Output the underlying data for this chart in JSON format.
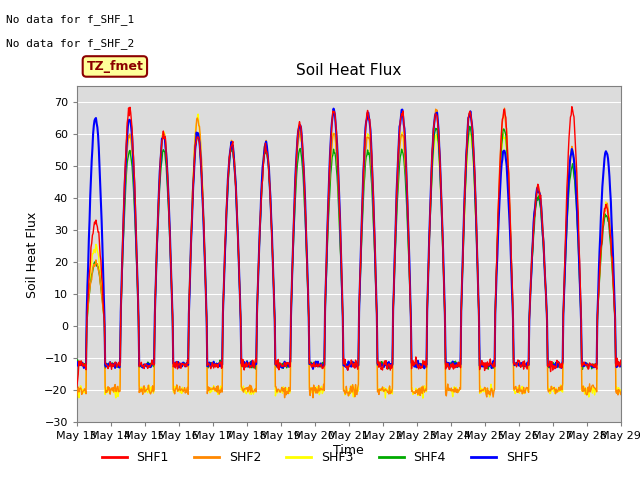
{
  "title": "Soil Heat Flux",
  "ylabel": "Soil Heat Flux",
  "xlabel": "Time",
  "ylim": [
    -30,
    75
  ],
  "yticks": [
    -30,
    -20,
    -10,
    0,
    10,
    20,
    30,
    40,
    50,
    60,
    70
  ],
  "bg_color": "#dcdcdc",
  "fig_bg_color": "#ffffff",
  "text_annotations": [
    "No data for f_SHF_1",
    "No data for f_SHF_2"
  ],
  "legend_label": "TZ_fmet",
  "series_colors": {
    "SHF1": "#ff0000",
    "SHF2": "#ff8800",
    "SHF3": "#ffff00",
    "SHF4": "#00aa00",
    "SHF5": "#0000ff"
  },
  "n_days": 16,
  "start_day": 13,
  "pts_per_day": 48,
  "day_peaks_shf1": [
    33,
    68,
    60,
    60,
    57,
    56,
    63,
    67,
    67,
    67,
    67,
    67,
    67,
    43,
    68,
    38
  ],
  "day_peaks_shf2": [
    20,
    60,
    60,
    65,
    57,
    57,
    60,
    60,
    60,
    60,
    67,
    67,
    67,
    43,
    55,
    38
  ],
  "day_peaks_shf3": [
    25,
    60,
    60,
    65,
    57,
    57,
    60,
    60,
    60,
    60,
    60,
    60,
    60,
    43,
    55,
    38
  ],
  "day_peaks_shf4": [
    20,
    55,
    55,
    60,
    55,
    55,
    55,
    55,
    55,
    55,
    62,
    62,
    62,
    40,
    50,
    35
  ],
  "day_peaks_shf5": [
    65,
    65,
    60,
    60,
    57,
    57,
    63,
    67,
    67,
    67,
    67,
    67,
    55,
    43,
    55,
    55
  ],
  "night_shf1": -12,
  "night_shf2": -20,
  "night_shf3": -20,
  "night_shf4": -12,
  "night_shf5": -12,
  "day_lo": 0.28,
  "day_hi": 0.82
}
